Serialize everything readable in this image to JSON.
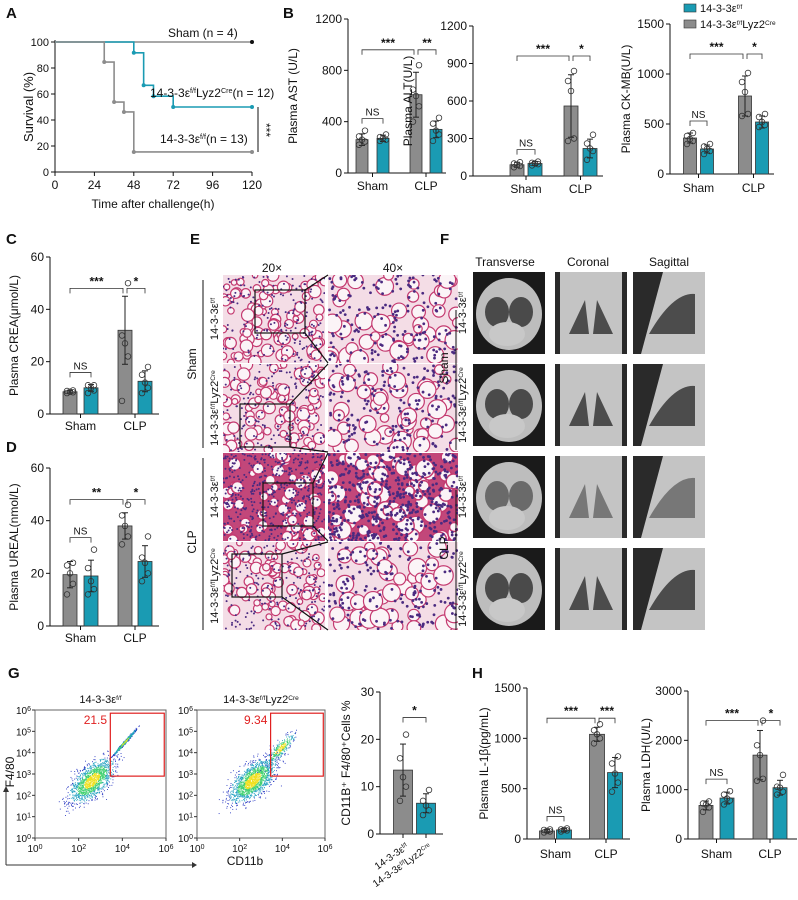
{
  "colors": {
    "gray": "#8c8c8c",
    "teal": "#1a9bb3",
    "gate": "#e02020"
  },
  "genotypes": {
    "ff": {
      "text": "14-3-3ε",
      "sup": "f/f"
    },
    "cre": {
      "text": "14-3-3ε",
      "sup": "f/f",
      "text2": "Lyz2",
      "sup2": "Cre"
    }
  },
  "panels": {
    "A": "A",
    "B": "B",
    "C": "C",
    "D": "D",
    "E": "E",
    "F": "F",
    "G": "G",
    "H": "H"
  },
  "legend": [
    {
      "genotype": "ff",
      "color": "teal"
    },
    {
      "genotype": "cre",
      "color": "gray"
    }
  ],
  "histology": {
    "magnifications": [
      "20×",
      "40×"
    ],
    "groups": [
      "Sham",
      "CLP"
    ]
  },
  "ct": {
    "views": [
      "Transverse",
      "Coronal",
      "Sagittal"
    ],
    "groups": [
      "Sham",
      "CLP"
    ]
  },
  "flow": {
    "xlabel": "CD11b",
    "ylabel": "F4/80",
    "ticks": [
      "10",
      "10",
      "10",
      "10",
      "10",
      "10",
      "10"
    ],
    "tick_exponents": [
      "0",
      "1",
      "2",
      "3",
      "4",
      "5",
      "6"
    ],
    "x_ticks": [
      "10",
      "10",
      "10",
      "10"
    ],
    "x_tick_exponents": [
      "0",
      "2",
      "4",
      "6"
    ],
    "plots": [
      {
        "genotype": "ff",
        "gate_percent": "21.5"
      },
      {
        "genotype": "cre",
        "gate_percent": "9.34"
      }
    ]
  },
  "chart_data": [
    {
      "id": "survival",
      "type": "line",
      "xlabel": "Time after challenge(h)",
      "ylabel": "Survival (%)",
      "xlim": [
        0,
        120
      ],
      "ylim": [
        0,
        100
      ],
      "xticks": [
        "0",
        "24",
        "48",
        "72",
        "96",
        "120"
      ],
      "yticks": [
        "0",
        "20",
        "40",
        "60",
        "80",
        "100"
      ],
      "series": [
        {
          "name": "Sham (n = 4)",
          "color": "gray",
          "x": [
            0,
            120
          ],
          "y": [
            100,
            100
          ],
          "end_color": "#111111"
        },
        {
          "name": "14-3-3εf/fLyz2Cre(n = 12)",
          "genotype": "cre",
          "n_label": "(n = 12)",
          "color": "teal",
          "x": [
            0,
            48,
            54,
            60,
            72,
            120
          ],
          "y": [
            100,
            91.7,
            66.7,
            58.3,
            50,
            50
          ]
        },
        {
          "name": "14-3-3εf/f(n = 13)",
          "genotype": "ff",
          "n_label": "(n = 13)",
          "color": "gray",
          "x": [
            0,
            30,
            36,
            42,
            48,
            120
          ],
          "y": [
            100,
            84.6,
            53.8,
            46.2,
            15.4,
            15.4
          ]
        }
      ],
      "annotations": [
        "***"
      ]
    },
    {
      "id": "ast",
      "type": "bar",
      "ylabel": "Plasma AST (U/L)",
      "ylim": [
        0,
        1200
      ],
      "yticks": [
        "0",
        "400",
        "800",
        "1200"
      ],
      "categories": [
        "Sham",
        "CLP"
      ],
      "bars": [
        {
          "cat": 0,
          "color": "gray",
          "mean": 260,
          "sd": 45,
          "points": [
            220,
            245,
            260,
            285,
            330
          ]
        },
        {
          "cat": 0,
          "color": "teal",
          "mean": 270,
          "sd": 25,
          "points": [
            250,
            260,
            270,
            280,
            300
          ]
        },
        {
          "cat": 1,
          "color": "gray",
          "mean": 610,
          "sd": 175,
          "points": [
            400,
            520,
            600,
            650,
            840
          ]
        },
        {
          "cat": 1,
          "color": "teal",
          "mean": 340,
          "sd": 65,
          "points": [
            250,
            300,
            330,
            385,
            430
          ]
        }
      ],
      "significance": [
        {
          "from": 0,
          "to": 2,
          "label": "***"
        },
        {
          "from": 2,
          "to": 3,
          "label": "**"
        },
        {
          "from": 0,
          "to": 1,
          "label": "NS"
        }
      ]
    },
    {
      "id": "alt",
      "type": "bar",
      "ylabel": "Plasma ALT(U/L)",
      "ylim": [
        0,
        1200
      ],
      "yticks": [
        "0",
        "300",
        "600",
        "900",
        "1200"
      ],
      "categories": [
        "Sham",
        "CLP"
      ],
      "bars": [
        {
          "cat": 0,
          "color": "gray",
          "mean": 90,
          "sd": 20,
          "points": [
            70,
            80,
            90,
            100,
            110
          ]
        },
        {
          "cat": 0,
          "color": "teal",
          "mean": 100,
          "sd": 15,
          "points": [
            85,
            95,
            100,
            105,
            115
          ]
        },
        {
          "cat": 1,
          "color": "gray",
          "mean": 560,
          "sd": 250,
          "points": [
            280,
            300,
            680,
            760,
            840
          ]
        },
        {
          "cat": 1,
          "color": "teal",
          "mean": 220,
          "sd": 75,
          "points": [
            130,
            200,
            220,
            260,
            330
          ]
        }
      ],
      "significance": [
        {
          "from": 0,
          "to": 2,
          "label": "***"
        },
        {
          "from": 2,
          "to": 3,
          "label": "*"
        },
        {
          "from": 0,
          "to": 1,
          "label": "NS"
        }
      ]
    },
    {
      "id": "ckmb",
      "type": "bar",
      "ylabel": "Plasma CK-MB(U/L)",
      "ylim": [
        0,
        1500
      ],
      "yticks": [
        "0",
        "500",
        "1000",
        "1500"
      ],
      "categories": [
        "Sham",
        "CLP"
      ],
      "bars": [
        {
          "cat": 0,
          "color": "gray",
          "mean": 360,
          "sd": 50,
          "points": [
            300,
            330,
            350,
            380,
            410
          ]
        },
        {
          "cat": 0,
          "color": "teal",
          "mean": 250,
          "sd": 40,
          "points": [
            200,
            230,
            250,
            275,
            300
          ]
        },
        {
          "cat": 1,
          "color": "gray",
          "mean": 780,
          "sd": 200,
          "points": [
            580,
            600,
            820,
            920,
            1010
          ]
        },
        {
          "cat": 1,
          "color": "teal",
          "mean": 520,
          "sd": 60,
          "points": [
            470,
            490,
            520,
            570,
            600
          ]
        }
      ],
      "significance": [
        {
          "from": 0,
          "to": 2,
          "label": "***"
        },
        {
          "from": 2,
          "to": 3,
          "label": "*"
        },
        {
          "from": 0,
          "to": 1,
          "label": "NS"
        }
      ]
    },
    {
      "id": "crea",
      "type": "bar",
      "ylabel": "Plasma CREA(μmol/L)",
      "ylim": [
        0,
        60
      ],
      "yticks": [
        "0",
        "20",
        "40",
        "60"
      ],
      "categories": [
        "Sham",
        "CLP"
      ],
      "bars": [
        {
          "cat": 0,
          "color": "gray",
          "mean": 8.5,
          "sd": 0.5,
          "points": [
            8,
            8.3,
            8.5,
            8.8,
            9
          ]
        },
        {
          "cat": 0,
          "color": "teal",
          "mean": 10,
          "sd": 1.3,
          "points": [
            8,
            9,
            10,
            11,
            11
          ]
        },
        {
          "cat": 1,
          "color": "gray",
          "mean": 32,
          "sd": 13,
          "points": [
            5,
            22,
            27,
            30,
            50
          ]
        },
        {
          "cat": 1,
          "color": "teal",
          "mean": 12.5,
          "sd": 4,
          "points": [
            8,
            10,
            12,
            15,
            18
          ]
        }
      ],
      "significance": [
        {
          "from": 0,
          "to": 2,
          "label": "***"
        },
        {
          "from": 2,
          "to": 3,
          "label": "*"
        },
        {
          "from": 0,
          "to": 1,
          "label": "NS"
        }
      ]
    },
    {
      "id": "ureal",
      "type": "bar",
      "ylabel": "Plasma UREAL(nmol/L)",
      "ylim": [
        0,
        60
      ],
      "yticks": [
        "0",
        "20",
        "40",
        "60"
      ],
      "categories": [
        "Sham",
        "CLP"
      ],
      "bars": [
        {
          "cat": 0,
          "color": "gray",
          "mean": 19.5,
          "sd": 5,
          "points": [
            12,
            16,
            20,
            23,
            24
          ]
        },
        {
          "cat": 0,
          "color": "teal",
          "mean": 19,
          "sd": 6,
          "points": [
            12,
            14,
            17,
            22,
            29
          ]
        },
        {
          "cat": 1,
          "color": "gray",
          "mean": 38,
          "sd": 5,
          "points": [
            31,
            34,
            38,
            42,
            46
          ]
        },
        {
          "cat": 1,
          "color": "teal",
          "mean": 24.5,
          "sd": 6,
          "points": [
            17,
            20,
            24,
            26,
            34
          ]
        }
      ],
      "significance": [
        {
          "from": 0,
          "to": 2,
          "label": "**"
        },
        {
          "from": 2,
          "to": 3,
          "label": "*"
        },
        {
          "from": 0,
          "to": 1,
          "label": "NS"
        }
      ]
    },
    {
      "id": "f480",
      "type": "bar",
      "ylabel": "CD11B⁺ F4/80⁺Cells %",
      "ylim": [
        0,
        30
      ],
      "yticks": [
        "0",
        "10",
        "20",
        "30"
      ],
      "categories": [
        "ff",
        "cre"
      ],
      "bars": [
        {
          "cat": 0,
          "color": "gray",
          "mean": 13.5,
          "sd": 5.5,
          "points": [
            7,
            10,
            12,
            16,
            21
          ]
        },
        {
          "cat": 1,
          "color": "teal",
          "mean": 6.5,
          "sd": 2,
          "points": [
            4,
            5,
            6,
            7,
            9.3
          ]
        }
      ],
      "significance": [
        {
          "from": 0,
          "to": 1,
          "label": "*"
        }
      ]
    },
    {
      "id": "il1b",
      "type": "bar",
      "ylabel": "Plasma IL-1β(pg/mL)",
      "ylim": [
        0,
        1500
      ],
      "yticks": [
        "0",
        "500",
        "1000",
        "1500"
      ],
      "categories": [
        "Sham",
        "CLP"
      ],
      "bars": [
        {
          "cat": 0,
          "color": "gray",
          "mean": 80,
          "sd": 15,
          "points": [
            65,
            75,
            80,
            90,
            95
          ]
        },
        {
          "cat": 0,
          "color": "teal",
          "mean": 90,
          "sd": 15,
          "points": [
            75,
            85,
            90,
            95,
            105
          ]
        },
        {
          "cat": 1,
          "color": "gray",
          "mean": 1040,
          "sd": 70,
          "points": [
            950,
            1000,
            1040,
            1080,
            1140
          ]
        },
        {
          "cat": 1,
          "color": "teal",
          "mean": 660,
          "sd": 150,
          "points": [
            470,
            560,
            650,
            750,
            820
          ]
        }
      ],
      "significance": [
        {
          "from": 0,
          "to": 2,
          "label": "***"
        },
        {
          "from": 2,
          "to": 3,
          "label": "***"
        },
        {
          "from": 0,
          "to": 1,
          "label": "NS"
        }
      ]
    },
    {
      "id": "ldh",
      "type": "bar",
      "ylabel": "Plasma LDH(U/L)",
      "ylim": [
        0,
        3000
      ],
      "yticks": [
        "0",
        "1000",
        "2000",
        "3000"
      ],
      "categories": [
        "Sham",
        "CLP"
      ],
      "bars": [
        {
          "cat": 0,
          "color": "gray",
          "mean": 680,
          "sd": 90,
          "points": [
            550,
            640,
            700,
            720,
            760
          ]
        },
        {
          "cat": 0,
          "color": "teal",
          "mean": 830,
          "sd": 120,
          "points": [
            700,
            780,
            820,
            900,
            970
          ]
        },
        {
          "cat": 1,
          "color": "gray",
          "mean": 1700,
          "sd": 500,
          "points": [
            1180,
            1220,
            1700,
            1900,
            2400
          ]
        },
        {
          "cat": 1,
          "color": "teal",
          "mean": 1040,
          "sd": 150,
          "points": [
            900,
            960,
            1040,
            1060,
            1300
          ]
        }
      ],
      "significance": [
        {
          "from": 0,
          "to": 2,
          "label": "***"
        },
        {
          "from": 2,
          "to": 3,
          "label": "*"
        },
        {
          "from": 0,
          "to": 1,
          "label": "NS"
        }
      ]
    }
  ]
}
